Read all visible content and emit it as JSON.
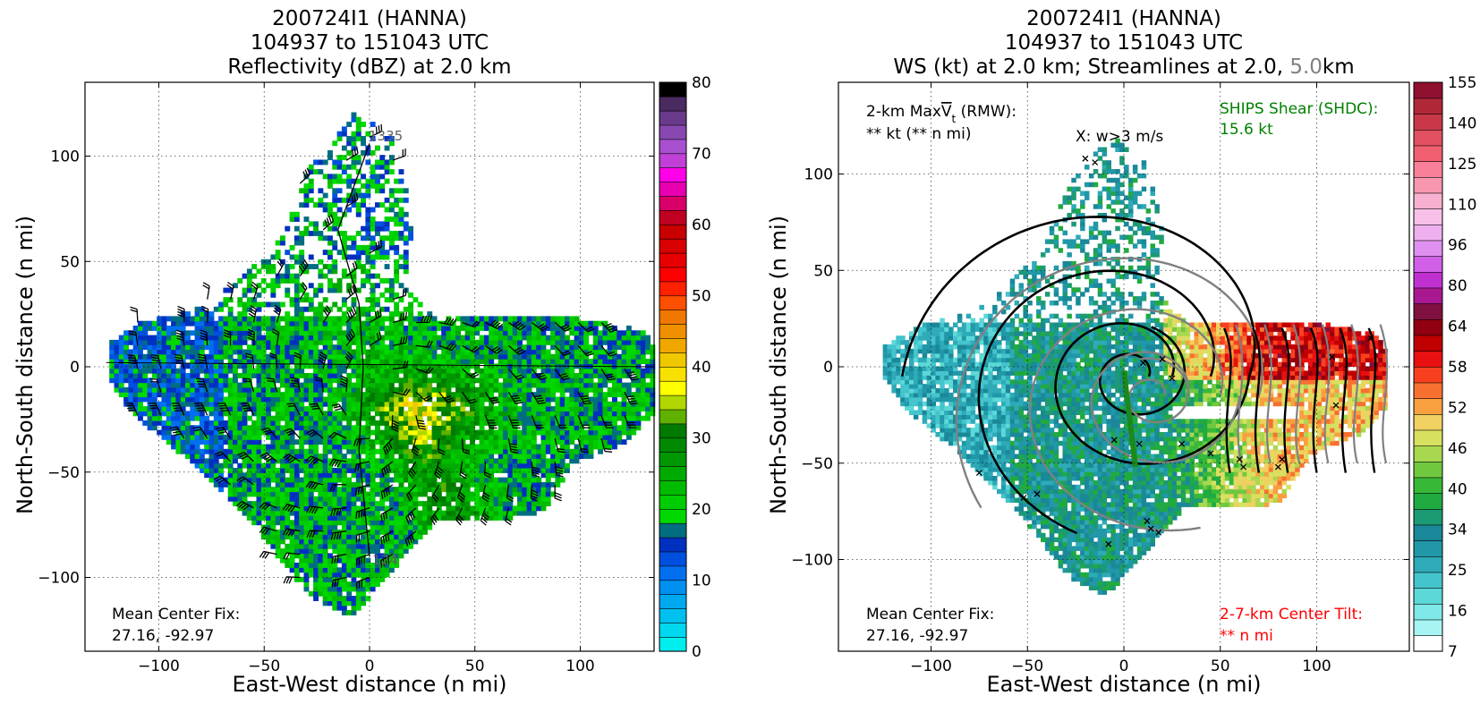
{
  "chart_data": [
    {
      "type": "heatmap",
      "title_lines": [
        "200724I1 (HANNA)",
        "104937 to 151043 UTC",
        "Reflectivity (dBZ) at 2.0 km"
      ],
      "xlabel": "East-West distance (n mi)",
      "ylabel": "North-South distance (n mi)",
      "xlim": [
        -135,
        135
      ],
      "ylim": [
        -135,
        135
      ],
      "xticks": [
        -100,
        -50,
        0,
        50,
        100
      ],
      "yticks": [
        -100,
        -50,
        0,
        50,
        100
      ],
      "grid": true,
      "colorbar": {
        "ticks": [
          "0",
          "10",
          "20",
          "30",
          "40",
          "50",
          "60",
          "70",
          "80"
        ],
        "colors": [
          "#00eeee",
          "#00d8f0",
          "#00c0f0",
          "#00a8f0",
          "#0090f0",
          "#0070f0",
          "#0050e0",
          "#0030c0",
          "#006e80",
          "#00d800",
          "#00cc00",
          "#00bb00",
          "#00aa00",
          "#009800",
          "#008800",
          "#007a00",
          "#60b000",
          "#b0d800",
          "#ffff00",
          "#f8e000",
          "#f0c800",
          "#f0a800",
          "#f09000",
          "#f07800",
          "#ff5000",
          "#ff2000",
          "#ff0000",
          "#e80000",
          "#d80000",
          "#c80000",
          "#c00020",
          "#d80068",
          "#e800b0",
          "#ff00e8",
          "#c040d8",
          "#a850d0",
          "#8848b0",
          "#6a3a8a",
          "#4a2a60",
          "#000000"
        ]
      },
      "annotations": {
        "center_fix_label": "Mean Center Fix:",
        "center_fix_value": "27.16, -92.97",
        "track_time_top": "1335",
        "track_time_bottom": "124"
      },
      "track_points": [
        [
          0,
          106
        ],
        [
          -15,
          65
        ],
        [
          -5,
          30
        ],
        [
          -3,
          0
        ],
        [
          -5,
          -40
        ],
        [
          0,
          -90
        ]
      ],
      "flight_leg": [
        [
          -125,
          2
        ],
        [
          135,
          0
        ]
      ]
    },
    {
      "type": "heatmap",
      "title_lines": [
        "200724I1 (HANNA)",
        "104937 to 151043 UTC"
      ],
      "title_line3": {
        "part1": "WS (kt) at 2.0 km; Streamlines at 2.0, ",
        "part2": "5.0",
        "part3": "km"
      },
      "xlabel": "East-West distance (n mi)",
      "ylabel": "North-South distance (n mi)",
      "xlim": [
        -148,
        148
      ],
      "ylim": [
        -148,
        148
      ],
      "xticks": [
        -100,
        -50,
        0,
        50,
        100
      ],
      "yticks": [
        -100,
        -50,
        0,
        50,
        100
      ],
      "grid": true,
      "colorbar": {
        "ticks": [
          "7",
          "16",
          "25",
          "34",
          "40",
          "46",
          "52",
          "58",
          "64",
          "80",
          "96",
          "110",
          "125",
          "140",
          "155"
        ],
        "colors": [
          "#ffffff",
          "#a8f4f4",
          "#80e8e8",
          "#5cd8d8",
          "#44c4cc",
          "#2eaab8",
          "#2098a8",
          "#1a8898",
          "#1c9a74",
          "#20aa40",
          "#38b838",
          "#70c840",
          "#a8d850",
          "#d8e060",
          "#f0d060",
          "#f8a040",
          "#f87030",
          "#f84020",
          "#e81010",
          "#c00000",
          "#900010",
          "#801040",
          "#a81890",
          "#c030d0",
          "#d060e8",
          "#e090f0",
          "#f0b0f0",
          "#f8c0e8",
          "#f8b0d0",
          "#f898b0",
          "#f88098",
          "#f06070",
          "#e05060",
          "#c83848",
          "#b02838",
          "#901030"
        ]
      },
      "annotations": {
        "maxvt_label_a": "2-km Max",
        "maxvt_v": "V",
        "maxvt_sub": "t",
        "maxvt_label_b": " (RMW):",
        "maxvt_value": "** kt (** n mi)",
        "w_note": "X: w>3 m/s",
        "shear_label": "SHIPS Shear (SHDC):",
        "shear_value": "15.6 kt",
        "center_fix_label": "Mean Center Fix:",
        "center_fix_value": "27.16, -92.97",
        "tilt_label": "2-7-km Center Tilt:",
        "tilt_value": "** n mi"
      },
      "colors": {
        "shear": "#008000",
        "tilt": "#ff0000",
        "streamline_upper": "#808080",
        "streamline_lower": "#000000"
      }
    }
  ]
}
